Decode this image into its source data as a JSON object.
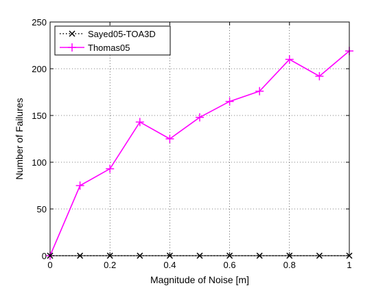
{
  "chart_data": {
    "type": "line",
    "title": "",
    "xlabel": "Magnitude of Noise [m]",
    "ylabel": "Number of Failures",
    "xlim": [
      0,
      1
    ],
    "ylim": [
      0,
      250
    ],
    "xticks": [
      0,
      0.2,
      0.4,
      0.6,
      0.8,
      1
    ],
    "xtick_labels": [
      "0",
      "0.2",
      "0.4",
      "0.6",
      "0.8",
      "1"
    ],
    "yticks": [
      0,
      50,
      100,
      150,
      200,
      250
    ],
    "ytick_labels": [
      "0",
      "50",
      "100",
      "150",
      "200",
      "250"
    ],
    "grid": true,
    "grid_style": "dotted",
    "legend_position": "top-left",
    "x": [
      0,
      0.1,
      0.2,
      0.3,
      0.4,
      0.5,
      0.6,
      0.7,
      0.8,
      0.9,
      1.0
    ],
    "series": [
      {
        "name": "Sayed05-TOA3D",
        "color": "#000000",
        "line_style": "dotted",
        "marker": "x",
        "values": [
          0,
          0,
          0,
          0,
          0,
          0,
          0,
          0,
          0,
          0,
          0
        ]
      },
      {
        "name": "Thomas05",
        "color": "#ff00ff",
        "line_style": "solid",
        "marker": "+",
        "values": [
          0,
          75,
          93,
          143,
          125,
          148,
          165,
          176,
          210,
          192,
          219
        ]
      }
    ]
  }
}
